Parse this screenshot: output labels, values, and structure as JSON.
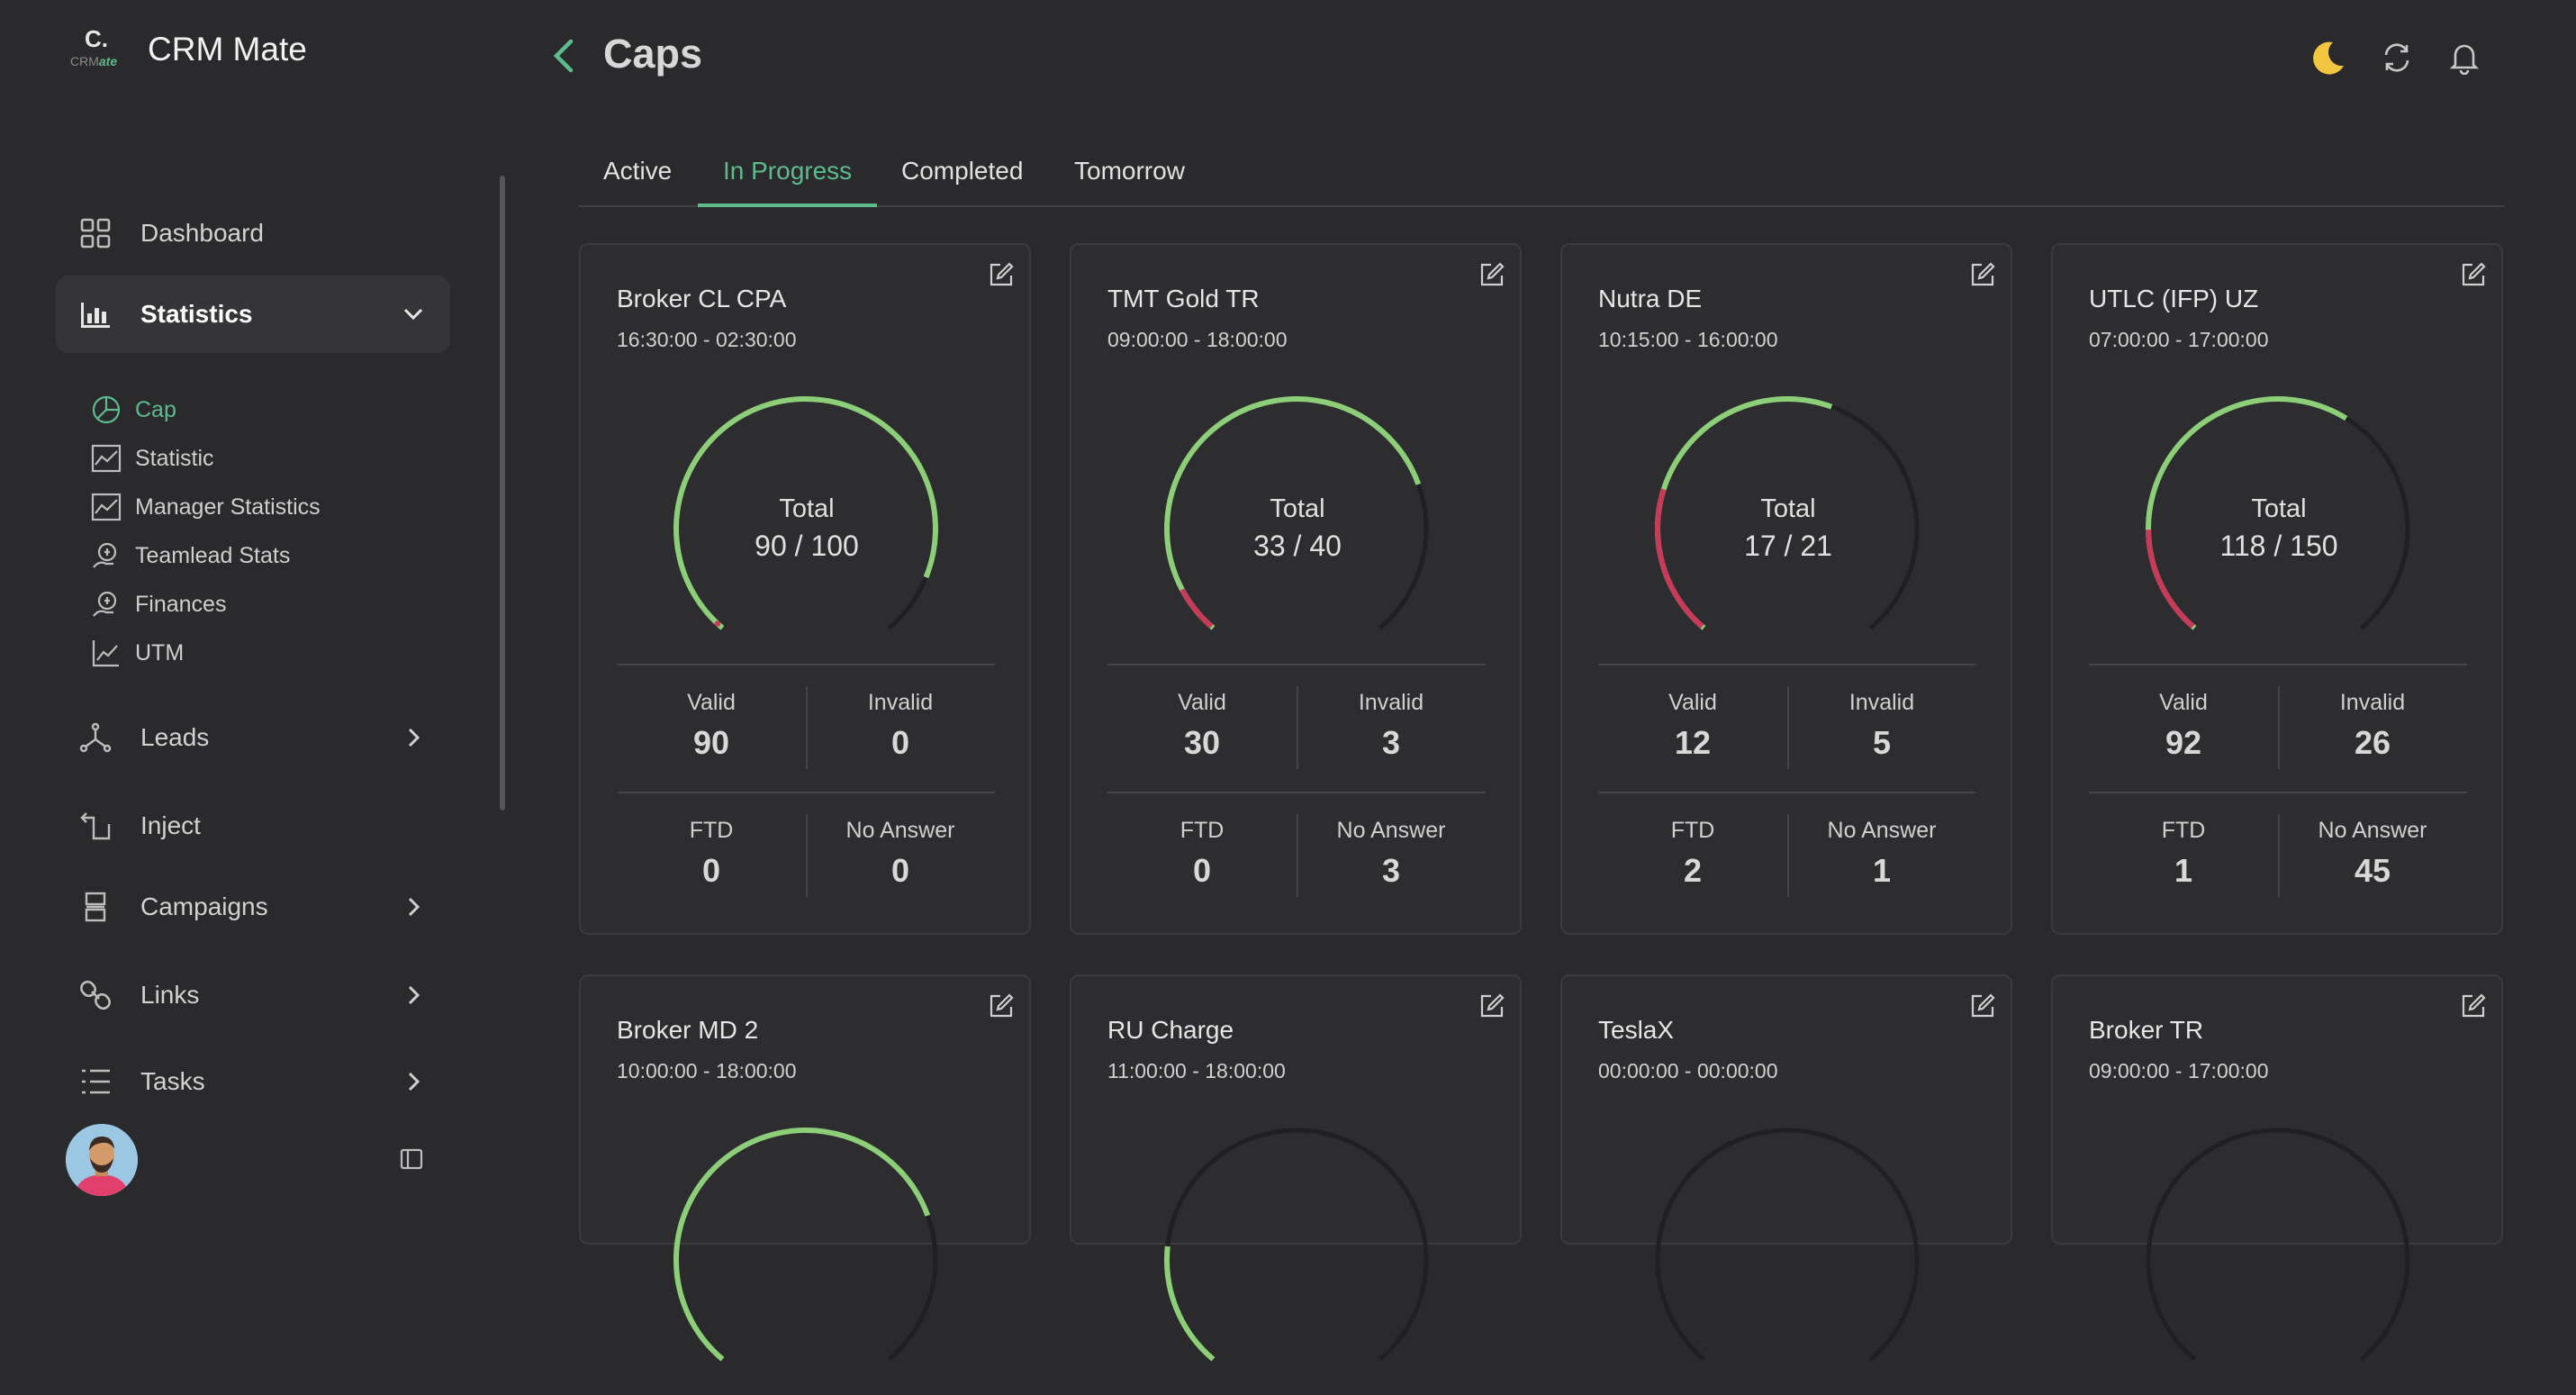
{
  "app": {
    "logo_mark": "C.",
    "logo_sub_a": "CRM",
    "logo_sub_b": "ate",
    "name": "CRM Mate"
  },
  "sidebar": {
    "items": [
      {
        "label": "Dashboard",
        "icon": "grid-icon"
      },
      {
        "label": "Statistics",
        "icon": "bar-chart-icon",
        "expanded": true
      },
      {
        "label": "Leads",
        "icon": "share-nodes-icon"
      },
      {
        "label": "Inject",
        "icon": "inject-icon"
      },
      {
        "label": "Campaigns",
        "icon": "layers-icon"
      },
      {
        "label": "Links",
        "icon": "link-icon"
      },
      {
        "label": "Tasks",
        "icon": "list-icon"
      }
    ],
    "sub_items": [
      {
        "label": "Cap",
        "icon": "pie-icon",
        "active": true
      },
      {
        "label": "Statistic",
        "icon": "line-chart-icon"
      },
      {
        "label": "Manager Statistics",
        "icon": "line-chart-icon"
      },
      {
        "label": "Teamlead Stats",
        "icon": "coin-hand-icon"
      },
      {
        "label": "Finances",
        "icon": "coin-hand-icon"
      },
      {
        "label": "UTM",
        "icon": "trend-icon"
      }
    ]
  },
  "header": {
    "title": "Caps"
  },
  "tabs": [
    {
      "label": "Active"
    },
    {
      "label": "In Progress",
      "active": true
    },
    {
      "label": "Completed"
    },
    {
      "label": "Tomorrow"
    }
  ],
  "labels": {
    "total": "Total",
    "valid": "Valid",
    "invalid": "Invalid",
    "ftd": "FTD",
    "no_answer": "No Answer"
  },
  "colors": {
    "accent": "#5dbb8e",
    "gauge_valid": "#8dcf78",
    "gauge_invalid": "#c9395a",
    "moon": "#f3c63f"
  },
  "cards": [
    {
      "title": "Broker CL CPA",
      "time": "16:30:00 - 02:30:00",
      "total_text": "90 / 100",
      "valid": 90,
      "invalid": 0,
      "cap": 100,
      "valid_num": "90",
      "invalid_num": "0",
      "ftd": "0",
      "no_answer": "0"
    },
    {
      "title": "TMT Gold TR",
      "time": "09:00:00 - 18:00:00",
      "total_text": "33 / 40",
      "valid": 30,
      "invalid": 3,
      "cap": 40,
      "valid_num": "30",
      "invalid_num": "3",
      "ftd": "0",
      "no_answer": "3"
    },
    {
      "title": "Nutra DE",
      "time": "10:15:00 - 16:00:00",
      "total_text": "17 / 21",
      "valid": 12,
      "invalid": 5,
      "cap": 21,
      "valid_num": "12",
      "invalid_num": "5",
      "ftd": "2",
      "no_answer": "1"
    },
    {
      "title": "UTLC (IFP) UZ",
      "time": "07:00:00 - 17:00:00",
      "total_text": "118 / 150",
      "valid": 92,
      "invalid": 26,
      "cap": 150,
      "valid_num": "92",
      "invalid_num": "26",
      "ftd": "1",
      "no_answer": "45"
    },
    {
      "title": "Broker MD 2",
      "time": "10:00:00 - 18:00:00",
      "valid": 0.75,
      "invalid": 0,
      "cap": 1
    },
    {
      "title": "RU Charge",
      "time": "11:00:00 - 18:00:00",
      "valid": 0.2,
      "invalid": 0,
      "cap": 1
    },
    {
      "title": "TeslaX",
      "time": "00:00:00 - 00:00:00",
      "valid": 0,
      "invalid": 0,
      "cap": 1
    },
    {
      "title": "Broker TR",
      "time": "09:00:00 - 17:00:00",
      "valid": 0,
      "invalid": 0,
      "cap": 1
    }
  ]
}
